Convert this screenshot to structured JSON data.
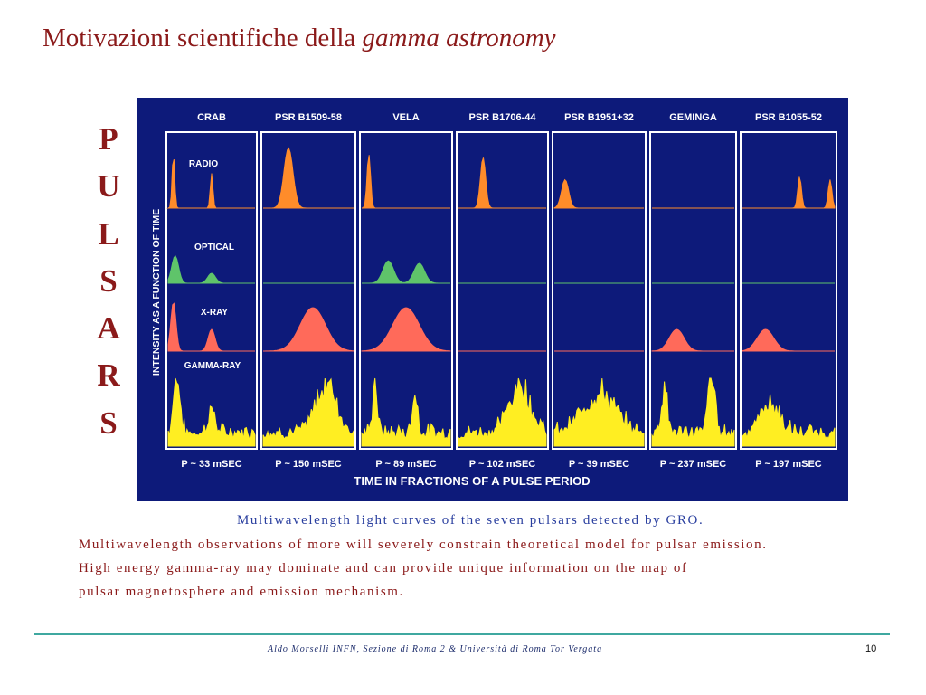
{
  "title": {
    "plain": "Motivazioni scientifiche della ",
    "italic": "gamma astronomy"
  },
  "vertical_word": [
    "P",
    "U",
    "L",
    "S",
    "A",
    "R",
    "S"
  ],
  "figure": {
    "colors": {
      "background": "#0d1a7a",
      "radio": "#ff8c2a",
      "optical": "#5fc46a",
      "xray": "#ff6a5a",
      "gamma": "#ffee22",
      "text": "#ffffff"
    },
    "y_axis_label": "INTENSITY AS A FUNCTION OF TIME",
    "x_axis_label": "TIME IN FRACTIONS OF A PULSE PERIOD",
    "band_labels": [
      "RADIO",
      "OPTICAL",
      "X-RAY",
      "GAMMA-RAY"
    ],
    "pulsars": [
      {
        "name": "CRAB",
        "period": "P ~ 33 mSEC"
      },
      {
        "name": "PSR B1509-58",
        "period": "P ~ 150 mSEC"
      },
      {
        "name": "VELA",
        "period": "P ~ 89 mSEC"
      },
      {
        "name": "PSR B1706-44",
        "period": "P ~ 102 mSEC"
      },
      {
        "name": "PSR B1951+32",
        "period": "P ~ 39 mSEC"
      },
      {
        "name": "GEMINGA",
        "period": "P ~ 237 mSEC"
      },
      {
        "name": "PSR B1055-52",
        "period": "P ~ 197 mSEC"
      }
    ]
  },
  "captions": {
    "line1": "Multiwavelength light curves of the seven pulsars detected by GRO.",
    "line2": "Multiwavelength observations of more will severely constrain theoretical model for pulsar emission.",
    "line3": "High energy gamma-ray may dominate and can provide unique information on the  map of",
    "line4": "pulsar magnetosphere and emission mechanism."
  },
  "footer": "Aldo Morselli INFN, Sezione di Roma 2  &  Università di Roma Tor Vergata",
  "page_number": "10"
}
